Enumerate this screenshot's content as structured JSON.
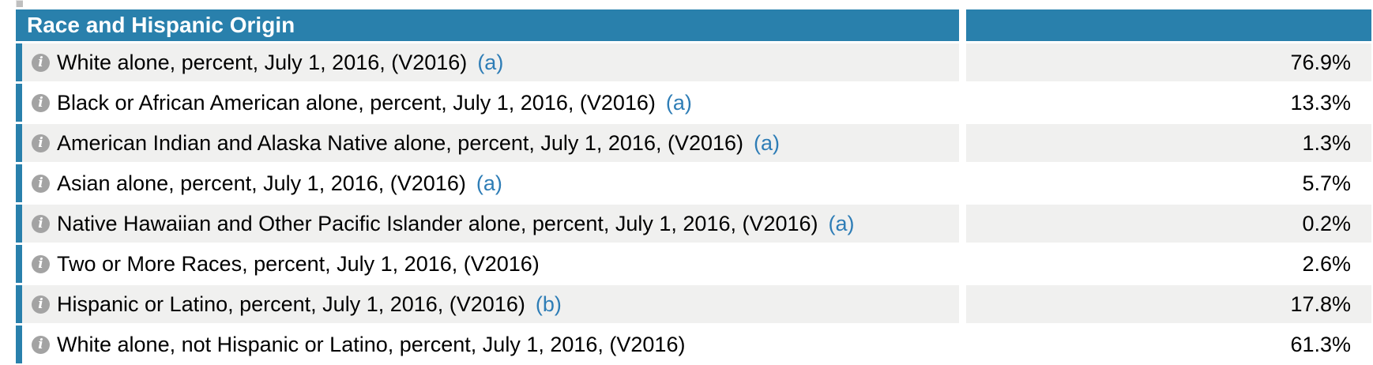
{
  "header": {
    "title": "Race and Hispanic Origin"
  },
  "rows": [
    {
      "label": "White alone, percent, July 1, 2016, (V2016)",
      "footnote": "(a)",
      "value": "76.9%"
    },
    {
      "label": "Black or African American alone, percent, July 1, 2016, (V2016)",
      "footnote": "(a)",
      "value": "13.3%"
    },
    {
      "label": "American Indian and Alaska Native alone, percent, July 1, 2016, (V2016)",
      "footnote": "(a)",
      "value": "1.3%"
    },
    {
      "label": "Asian alone, percent, July 1, 2016, (V2016)",
      "footnote": "(a)",
      "value": "5.7%"
    },
    {
      "label": "Native Hawaiian and Other Pacific Islander alone, percent, July 1, 2016, (V2016)",
      "footnote": "(a)",
      "value": "0.2%"
    },
    {
      "label": "Two or More Races, percent, July 1, 2016, (V2016)",
      "footnote": "",
      "value": "2.6%"
    },
    {
      "label": "Hispanic or Latino, percent, July 1, 2016, (V2016)",
      "footnote": "(b)",
      "value": "17.8%"
    },
    {
      "label": "White alone, not Hispanic or Latino, percent, July 1, 2016, (V2016)",
      "footnote": "",
      "value": "61.3%"
    }
  ],
  "icons": {
    "info": "i"
  },
  "colors": {
    "header_blue": "#2980ac",
    "row_stripe": "#f0f0ef",
    "link_blue": "#2e7db6",
    "icon_gray": "#a3a3a3"
  }
}
